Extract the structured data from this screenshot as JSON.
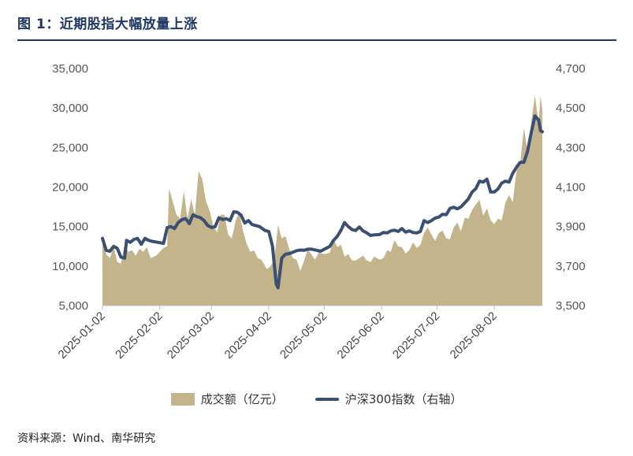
{
  "page_title": "图 1：近期股指大幅放量上涨",
  "source_note": "资料来源：Wind、南华研究",
  "legend": {
    "area_label": "成交额（亿元）",
    "line_label": "沪深300指数（右轴）"
  },
  "colors": {
    "area": "#c4b48c",
    "line": "#3a4f72",
    "title": "#1f3864"
  },
  "chart_data": {
    "type": "area+line",
    "title": "",
    "left_axis": {
      "ylim": [
        5000,
        35000
      ],
      "ticks": [
        "5,000",
        "10,000",
        "15,000",
        "20,000",
        "25,000",
        "30,000",
        "35,000"
      ],
      "tick_values": [
        5000,
        10000,
        15000,
        20000,
        25000,
        30000,
        35000
      ]
    },
    "right_axis": {
      "ylim": [
        3500,
        4700
      ],
      "ticks": [
        "3,500",
        "3,700",
        "3,900",
        "4,100",
        "4,300",
        "4,500",
        "4,700"
      ],
      "tick_values": [
        3500,
        3700,
        3900,
        4100,
        4300,
        4500,
        4700
      ]
    },
    "x_ticks": [
      "2025-01-02",
      "2025-02-02",
      "2025-03-02",
      "2025-04-02",
      "2025-05-02",
      "2025-06-02",
      "2025-07-02",
      "2025-08-02"
    ],
    "x_range": [
      "2025-01-02",
      "2025-08-28"
    ],
    "series": [
      {
        "name": "成交额（亿元）",
        "type": "area",
        "axis": "left",
        "points": [
          [
            "2025-01-02",
            14000
          ],
          [
            "2025-01-04",
            11500
          ],
          [
            "2025-01-06",
            11000
          ],
          [
            "2025-01-08",
            12500
          ],
          [
            "2025-01-10",
            10500
          ],
          [
            "2025-01-12",
            10300
          ],
          [
            "2025-01-14",
            12800
          ],
          [
            "2025-01-16",
            11800
          ],
          [
            "2025-01-18",
            12000
          ],
          [
            "2025-01-20",
            11300
          ],
          [
            "2025-01-22",
            12200
          ],
          [
            "2025-01-24",
            11800
          ],
          [
            "2025-01-26",
            12400
          ],
          [
            "2025-01-28",
            11000
          ],
          [
            "2025-01-31",
            11300
          ],
          [
            "2025-02-04",
            12300
          ],
          [
            "2025-02-06",
            12500
          ],
          [
            "2025-02-07",
            19800
          ],
          [
            "2025-02-09",
            18200
          ],
          [
            "2025-02-11",
            16500
          ],
          [
            "2025-02-13",
            16000
          ],
          [
            "2025-02-15",
            19500
          ],
          [
            "2025-02-17",
            16000
          ],
          [
            "2025-02-19",
            18500
          ],
          [
            "2025-02-21",
            16500
          ],
          [
            "2025-02-23",
            22000
          ],
          [
            "2025-02-25",
            21000
          ],
          [
            "2025-02-27",
            18200
          ],
          [
            "2025-03-01",
            17000
          ],
          [
            "2025-03-03",
            15000
          ],
          [
            "2025-03-05",
            14300
          ],
          [
            "2025-03-07",
            16500
          ],
          [
            "2025-03-09",
            16500
          ],
          [
            "2025-03-11",
            14000
          ],
          [
            "2025-03-13",
            13500
          ],
          [
            "2025-03-15",
            15700
          ],
          [
            "2025-03-17",
            16800
          ],
          [
            "2025-03-19",
            14500
          ],
          [
            "2025-03-21",
            12800
          ],
          [
            "2025-03-23",
            11800
          ],
          [
            "2025-03-25",
            12000
          ],
          [
            "2025-03-27",
            11000
          ],
          [
            "2025-03-29",
            10800
          ],
          [
            "2025-04-01",
            9600
          ],
          [
            "2025-04-03",
            10000
          ],
          [
            "2025-04-05",
            10800
          ],
          [
            "2025-04-07",
            15200
          ],
          [
            "2025-04-09",
            13500
          ],
          [
            "2025-04-11",
            13800
          ],
          [
            "2025-04-13",
            12200
          ],
          [
            "2025-04-15",
            11000
          ],
          [
            "2025-04-17",
            10800
          ],
          [
            "2025-04-19",
            9400
          ],
          [
            "2025-04-21",
            10600
          ],
          [
            "2025-04-23",
            12100
          ],
          [
            "2025-04-25",
            11500
          ],
          [
            "2025-04-27",
            10800
          ],
          [
            "2025-04-29",
            11700
          ],
          [
            "2025-05-02",
            11500
          ],
          [
            "2025-05-05",
            11700
          ],
          [
            "2025-05-07",
            13500
          ],
          [
            "2025-05-09",
            12400
          ],
          [
            "2025-05-11",
            12700
          ],
          [
            "2025-05-13",
            11200
          ],
          [
            "2025-05-15",
            11500
          ],
          [
            "2025-05-17",
            10700
          ],
          [
            "2025-05-19",
            10700
          ],
          [
            "2025-05-21",
            11000
          ],
          [
            "2025-05-23",
            11300
          ],
          [
            "2025-05-25",
            10700
          ],
          [
            "2025-05-27",
            10500
          ],
          [
            "2025-05-29",
            11200
          ],
          [
            "2025-06-01",
            10800
          ],
          [
            "2025-06-03",
            11000
          ],
          [
            "2025-06-05",
            12000
          ],
          [
            "2025-06-07",
            11800
          ],
          [
            "2025-06-09",
            13300
          ],
          [
            "2025-06-11",
            12500
          ],
          [
            "2025-06-13",
            12400
          ],
          [
            "2025-06-15",
            11600
          ],
          [
            "2025-06-17",
            12000
          ],
          [
            "2025-06-19",
            13000
          ],
          [
            "2025-06-21",
            12300
          ],
          [
            "2025-06-23",
            12700
          ],
          [
            "2025-06-25",
            14200
          ],
          [
            "2025-06-27",
            14900
          ],
          [
            "2025-06-29",
            14000
          ],
          [
            "2025-07-01",
            13200
          ],
          [
            "2025-07-03",
            14200
          ],
          [
            "2025-07-05",
            14500
          ],
          [
            "2025-07-07",
            13500
          ],
          [
            "2025-07-09",
            13400
          ],
          [
            "2025-07-11",
            14900
          ],
          [
            "2025-07-13",
            15500
          ],
          [
            "2025-07-15",
            14400
          ],
          [
            "2025-07-17",
            16100
          ],
          [
            "2025-07-19",
            16000
          ],
          [
            "2025-07-21",
            17100
          ],
          [
            "2025-07-23",
            17800
          ],
          [
            "2025-07-25",
            18400
          ],
          [
            "2025-07-27",
            16400
          ],
          [
            "2025-07-29",
            17300
          ],
          [
            "2025-07-31",
            15800
          ],
          [
            "2025-08-02",
            15300
          ],
          [
            "2025-08-04",
            16000
          ],
          [
            "2025-08-06",
            15800
          ],
          [
            "2025-08-08",
            18000
          ],
          [
            "2025-08-10",
            19000
          ],
          [
            "2025-08-12",
            18100
          ],
          [
            "2025-08-14",
            22000
          ],
          [
            "2025-08-16",
            23000
          ],
          [
            "2025-08-18",
            27500
          ],
          [
            "2025-08-20",
            24500
          ],
          [
            "2025-08-22",
            28200
          ],
          [
            "2025-08-24",
            31600
          ],
          [
            "2025-08-26",
            28000
          ],
          [
            "2025-08-27",
            31600
          ],
          [
            "2025-08-28",
            29800
          ]
        ]
      },
      {
        "name": "沪深300指数（右轴）",
        "type": "line",
        "axis": "right",
        "points": [
          [
            "2025-01-02",
            3840
          ],
          [
            "2025-01-04",
            3780
          ],
          [
            "2025-01-06",
            3775
          ],
          [
            "2025-01-08",
            3800
          ],
          [
            "2025-01-10",
            3790
          ],
          [
            "2025-01-12",
            3745
          ],
          [
            "2025-01-14",
            3740
          ],
          [
            "2025-01-15",
            3830
          ],
          [
            "2025-01-17",
            3820
          ],
          [
            "2025-01-19",
            3835
          ],
          [
            "2025-01-21",
            3840
          ],
          [
            "2025-01-23",
            3810
          ],
          [
            "2025-01-25",
            3840
          ],
          [
            "2025-01-27",
            3830
          ],
          [
            "2025-01-29",
            3825
          ],
          [
            "2025-02-01",
            3820
          ],
          [
            "2025-02-04",
            3815
          ],
          [
            "2025-02-06",
            3895
          ],
          [
            "2025-02-08",
            3900
          ],
          [
            "2025-02-10",
            3890
          ],
          [
            "2025-02-12",
            3920
          ],
          [
            "2025-02-14",
            3935
          ],
          [
            "2025-02-16",
            3940
          ],
          [
            "2025-02-18",
            3915
          ],
          [
            "2025-02-20",
            3960
          ],
          [
            "2025-02-22",
            3950
          ],
          [
            "2025-02-24",
            3945
          ],
          [
            "2025-02-26",
            3930
          ],
          [
            "2025-02-28",
            3905
          ],
          [
            "2025-03-02",
            3895
          ],
          [
            "2025-03-04",
            3900
          ],
          [
            "2025-03-06",
            3945
          ],
          [
            "2025-03-08",
            3935
          ],
          [
            "2025-03-10",
            3940
          ],
          [
            "2025-03-12",
            3930
          ],
          [
            "2025-03-14",
            3975
          ],
          [
            "2025-03-16",
            3972
          ],
          [
            "2025-03-18",
            3958
          ],
          [
            "2025-03-20",
            3918
          ],
          [
            "2025-03-22",
            3930
          ],
          [
            "2025-03-24",
            3910
          ],
          [
            "2025-03-26",
            3905
          ],
          [
            "2025-03-28",
            3900
          ],
          [
            "2025-03-31",
            3880
          ],
          [
            "2025-04-02",
            3875
          ],
          [
            "2025-04-04",
            3800
          ],
          [
            "2025-04-06",
            3610
          ],
          [
            "2025-04-07",
            3590
          ],
          [
            "2025-04-09",
            3740
          ],
          [
            "2025-04-11",
            3760
          ],
          [
            "2025-04-13",
            3763
          ],
          [
            "2025-04-15",
            3770
          ],
          [
            "2025-04-17",
            3778
          ],
          [
            "2025-04-19",
            3781
          ],
          [
            "2025-04-21",
            3780
          ],
          [
            "2025-04-23",
            3785
          ],
          [
            "2025-04-25",
            3786
          ],
          [
            "2025-04-27",
            3782
          ],
          [
            "2025-04-30",
            3775
          ],
          [
            "2025-05-05",
            3800
          ],
          [
            "2025-05-07",
            3830
          ],
          [
            "2025-05-09",
            3850
          ],
          [
            "2025-05-11",
            3880
          ],
          [
            "2025-05-13",
            3920
          ],
          [
            "2025-05-15",
            3900
          ],
          [
            "2025-05-17",
            3885
          ],
          [
            "2025-05-19",
            3880
          ],
          [
            "2025-05-21",
            3898
          ],
          [
            "2025-05-23",
            3878
          ],
          [
            "2025-05-25",
            3868
          ],
          [
            "2025-05-27",
            3855
          ],
          [
            "2025-05-29",
            3858
          ],
          [
            "2025-06-01",
            3860
          ],
          [
            "2025-06-03",
            3870
          ],
          [
            "2025-06-05",
            3868
          ],
          [
            "2025-06-07",
            3878
          ],
          [
            "2025-06-09",
            3882
          ],
          [
            "2025-06-11",
            3875
          ],
          [
            "2025-06-13",
            3890
          ],
          [
            "2025-06-15",
            3872
          ],
          [
            "2025-06-17",
            3878
          ],
          [
            "2025-06-19",
            3870
          ],
          [
            "2025-06-21",
            3868
          ],
          [
            "2025-06-23",
            3875
          ],
          [
            "2025-06-25",
            3930
          ],
          [
            "2025-06-27",
            3920
          ],
          [
            "2025-06-29",
            3930
          ],
          [
            "2025-07-01",
            3943
          ],
          [
            "2025-07-03",
            3948
          ],
          [
            "2025-07-05",
            3962
          ],
          [
            "2025-07-07",
            3960
          ],
          [
            "2025-07-09",
            3992
          ],
          [
            "2025-07-11",
            3998
          ],
          [
            "2025-07-13",
            3990
          ],
          [
            "2025-07-15",
            4000
          ],
          [
            "2025-07-17",
            4020
          ],
          [
            "2025-07-19",
            4040
          ],
          [
            "2025-07-21",
            4075
          ],
          [
            "2025-07-23",
            4092
          ],
          [
            "2025-07-25",
            4130
          ],
          [
            "2025-07-27",
            4125
          ],
          [
            "2025-07-29",
            4140
          ],
          [
            "2025-07-31",
            4075
          ],
          [
            "2025-08-02",
            4075
          ],
          [
            "2025-08-04",
            4090
          ],
          [
            "2025-08-06",
            4120
          ],
          [
            "2025-08-08",
            4130
          ],
          [
            "2025-08-10",
            4125
          ],
          [
            "2025-08-12",
            4170
          ],
          [
            "2025-08-14",
            4200
          ],
          [
            "2025-08-16",
            4225
          ],
          [
            "2025-08-18",
            4225
          ],
          [
            "2025-08-20",
            4280
          ],
          [
            "2025-08-22",
            4375
          ],
          [
            "2025-08-24",
            4460
          ],
          [
            "2025-08-26",
            4440
          ],
          [
            "2025-08-27",
            4385
          ],
          [
            "2025-08-28",
            4380
          ]
        ]
      }
    ],
    "grid": false,
    "legend_position": "bottom"
  }
}
